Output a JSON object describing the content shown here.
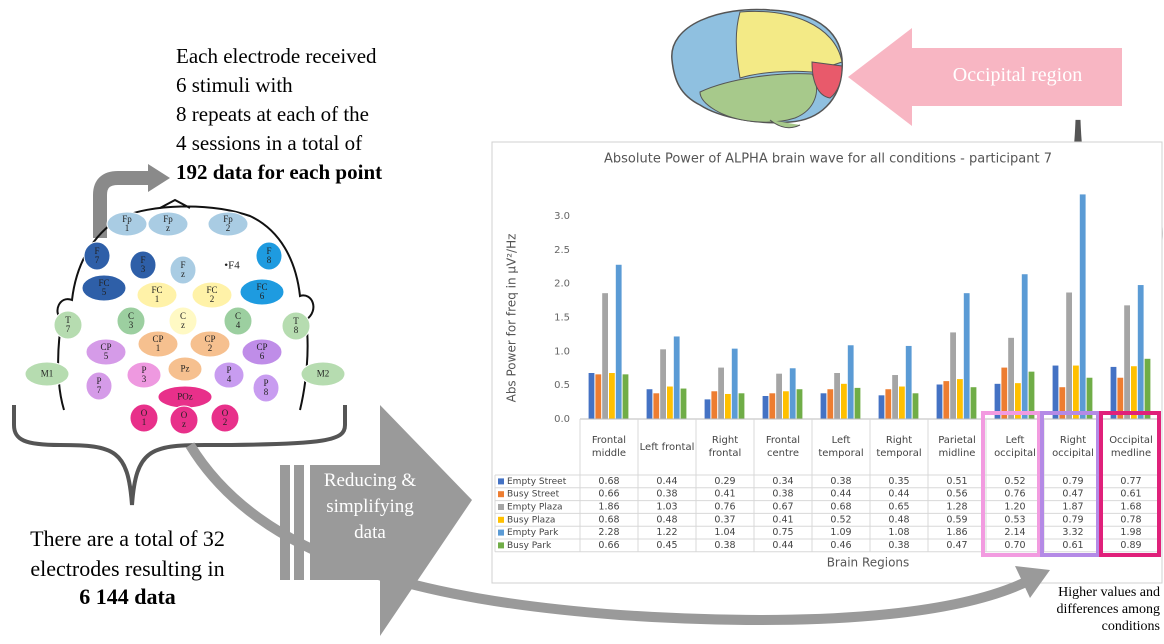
{
  "electrode_note": {
    "lines": [
      "Each electrode received",
      "6 stimuli with",
      "8 repeats at each of the",
      "4 sessions in a total of"
    ],
    "emphasis": "192 data for each point"
  },
  "total_note": {
    "text": "There are a total of 32 electrodes resulting in",
    "emphasis": "6 144 data"
  },
  "process_label": "Reducing & simplifying data",
  "region_label": "Occipital region",
  "findings_note": "Higher values and differences among conditions",
  "electrodes": [
    "Fp\n1",
    "Fp\nz",
    "Fp\n2",
    "F\n7",
    "F\n3",
    "F\nz",
    "•F4",
    "F\n8",
    "FC\n5",
    "FC\n1",
    "FC\n2",
    "FC\n6",
    "T\n7",
    "C\n3",
    "C\nz",
    "C\n4",
    "T\n8",
    "CP\n5",
    "CP\n1",
    "CP\n2",
    "CP\n6",
    "M1",
    "M2",
    "P\n7",
    "P\n3",
    "Pz",
    "P\n4",
    "P\n8",
    "POz",
    "O\n1",
    "O\nz",
    "O\n2"
  ],
  "chart_data": {
    "type": "bar",
    "title": "Absolute Power of ALPHA brain wave for all conditions - participant 7",
    "y_label": "Abs Power for freq in µV²/Hz",
    "x_label": "Brain Regions",
    "categories": [
      "Frontal middle",
      "Left frontal",
      "Right frontal",
      "Frontal centre",
      "Left temporal",
      "Right temporal",
      "Parietal midline",
      "Left occipital",
      "Right occipital",
      "Occipital medline"
    ],
    "ylim": [
      0,
      3.4
    ],
    "yticks": [
      {
        "value": 0,
        "label": "0.0"
      },
      0.5,
      {
        "value": 1,
        "label": "1.0"
      },
      1.5,
      {
        "value": 2,
        "label": "2.0"
      },
      2.5,
      {
        "value": 3,
        "label": "3.0"
      }
    ],
    "grid": false,
    "data_table": true,
    "series": [
      {
        "name": "Empty Street",
        "color": "#4472c4",
        "values": [
          0.68,
          0.44,
          0.29,
          0.34,
          0.38,
          0.35,
          0.51,
          0.52,
          0.79,
          0.77
        ],
        "value_labels": [
          "0.68",
          "0.44",
          "0.29",
          "0.34",
          "0.38",
          "0.35",
          "0.51",
          "0.52",
          "0.79",
          "0.77"
        ]
      },
      {
        "name": "Busy Street",
        "color": "#ed7d31",
        "values": [
          0.66,
          0.38,
          0.41,
          0.38,
          0.44,
          0.44,
          0.56,
          0.76,
          0.47,
          0.61
        ],
        "value_labels": [
          "0.66",
          "0.38",
          "0.41",
          "0.38",
          "0.44",
          "0.44",
          "0.56",
          "0.76",
          "0.47",
          "0.61"
        ]
      },
      {
        "name": "Empty Plaza",
        "color": "#a5a5a5",
        "values": [
          1.86,
          1.03,
          0.76,
          0.67,
          0.68,
          0.65,
          1.28,
          1.2,
          1.87,
          1.68
        ],
        "value_labels": [
          "1.86",
          "1.03",
          "0.76",
          "0.67",
          "0.68",
          "0.65",
          "1.28",
          "1.20",
          "1.87",
          "1.68"
        ]
      },
      {
        "name": "Busy Plaza",
        "color": "#ffc000",
        "values": [
          0.68,
          0.48,
          0.37,
          0.41,
          0.52,
          0.48,
          0.59,
          0.53,
          0.79,
          0.78
        ],
        "value_labels": [
          "0.68",
          "0.48",
          "0.37",
          "0.41",
          "0.52",
          "0.48",
          "0.59",
          "0.53",
          "0.79",
          "0.78"
        ]
      },
      {
        "name": "Empty Park",
        "color": "#5b9bd5",
        "values": [
          2.28,
          1.22,
          1.04,
          0.75,
          1.09,
          1.08,
          1.86,
          2.14,
          3.32,
          1.98
        ],
        "value_labels": [
          "2.28",
          "1.22",
          "1.04",
          "0.75",
          "1.09",
          "1.08",
          "1.86",
          "2.14",
          "3.32",
          "1.98"
        ]
      },
      {
        "name": "Busy Park",
        "color": "#70ad47",
        "values": [
          0.66,
          0.45,
          0.38,
          0.44,
          0.46,
          0.38,
          0.47,
          0.7,
          0.61,
          0.89
        ],
        "value_labels": [
          "0.66",
          "0.45",
          "0.38",
          "0.44",
          "0.46",
          "0.38",
          "0.47",
          "0.70",
          "0.61",
          "0.89"
        ]
      }
    ]
  }
}
